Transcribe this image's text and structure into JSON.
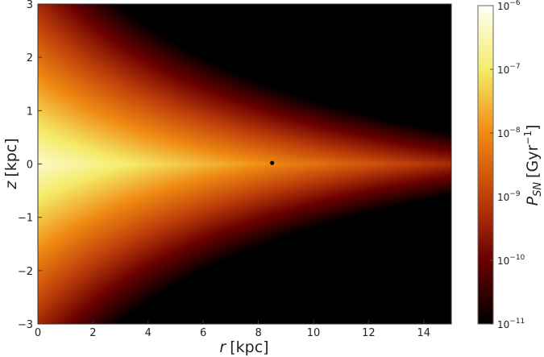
{
  "chart_data": {
    "type": "heatmap",
    "xlabel": "r [kpc]",
    "xlabel_var": "r",
    "xlabel_unit": "[kpc]",
    "ylabel": "z [kpc]",
    "ylabel_var": "z",
    "ylabel_unit": "[kpc]",
    "xlim": [
      0,
      15
    ],
    "ylim": [
      -3,
      3
    ],
    "xticks": [
      0,
      2,
      4,
      6,
      8,
      10,
      12,
      14
    ],
    "yticks": [
      -3,
      -2,
      -1,
      0,
      1,
      2,
      3
    ],
    "colorbar": {
      "label": "P_SN [Gyr^-1]",
      "label_main": "P",
      "label_sub": "SN",
      "label_unit": "[Gyr",
      "label_exp": "−1",
      "label_close": "]",
      "scale": "log",
      "range": [
        1e-11,
        1e-06
      ],
      "tick_exponents": [
        "−11",
        "−10",
        "−9",
        "−8",
        "−7",
        "−6"
      ],
      "tick_base": "10",
      "colormap": [
        "#000000",
        "#6a0000",
        "#c0400a",
        "#f08a12",
        "#f4ec6a",
        "#fffff6"
      ]
    },
    "marker": {
      "r": 8.5,
      "z": 0.02,
      "color": "#000000"
    },
    "grid": false
  }
}
